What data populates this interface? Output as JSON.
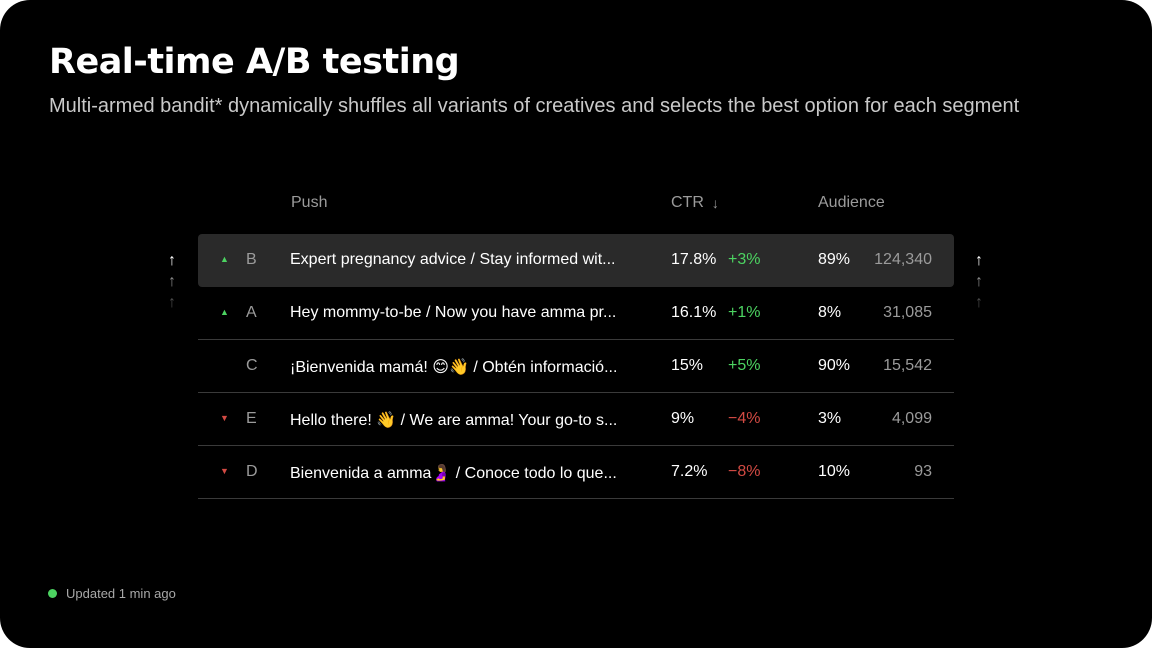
{
  "header": {
    "title": "Real-time A/B testing",
    "subtitle": "Multi-armed bandit* dynamically shuffles all variants of creatives and selects the best option for each segment"
  },
  "table": {
    "columns": {
      "push": "Push",
      "ctr": "CTR",
      "audience": "Audience"
    },
    "sort_icon": "↓",
    "rows": [
      {
        "trend": "▲",
        "trend_dir": "up",
        "letter": "B",
        "push": "Expert pregnancy advice / Stay informed wit...",
        "ctr": "17.8%",
        "delta": "+3%",
        "audience": "89%",
        "count": "124,340"
      },
      {
        "trend": "▲",
        "trend_dir": "up",
        "letter": "A",
        "push": "Hey mommy-to-be / Now you have amma pr...",
        "ctr": "16.1%",
        "delta": "+1%",
        "audience": "8%",
        "count": "31,085"
      },
      {
        "trend": "",
        "trend_dir": "none",
        "letter": "C",
        "push": "¡Bienvenida mamá! 😊👋 / Obtén informació...",
        "ctr": "15%",
        "delta": "+5%",
        "audience": "90%",
        "count": "15,542"
      },
      {
        "trend": "▼",
        "trend_dir": "down",
        "letter": "E",
        "push": "Hello there! 👋 / We are amma! Your go-to s...",
        "ctr": "9%",
        "delta": "−4%",
        "audience": "3%",
        "count": "4,099"
      },
      {
        "trend": "▼",
        "trend_dir": "down",
        "letter": "D",
        "push": "Bienvenida a amma🤰 / Conoce todo lo que...",
        "ctr": "7.2%",
        "delta": "−8%",
        "audience": "10%",
        "count": "93"
      }
    ]
  },
  "arrows": {
    "glyph": "↑"
  },
  "status": {
    "text": "Updated 1 min ago"
  },
  "colors": {
    "background": "#000000",
    "positive": "#4cd361",
    "negative": "#d24a43",
    "active_row": "#2a2a2a"
  }
}
